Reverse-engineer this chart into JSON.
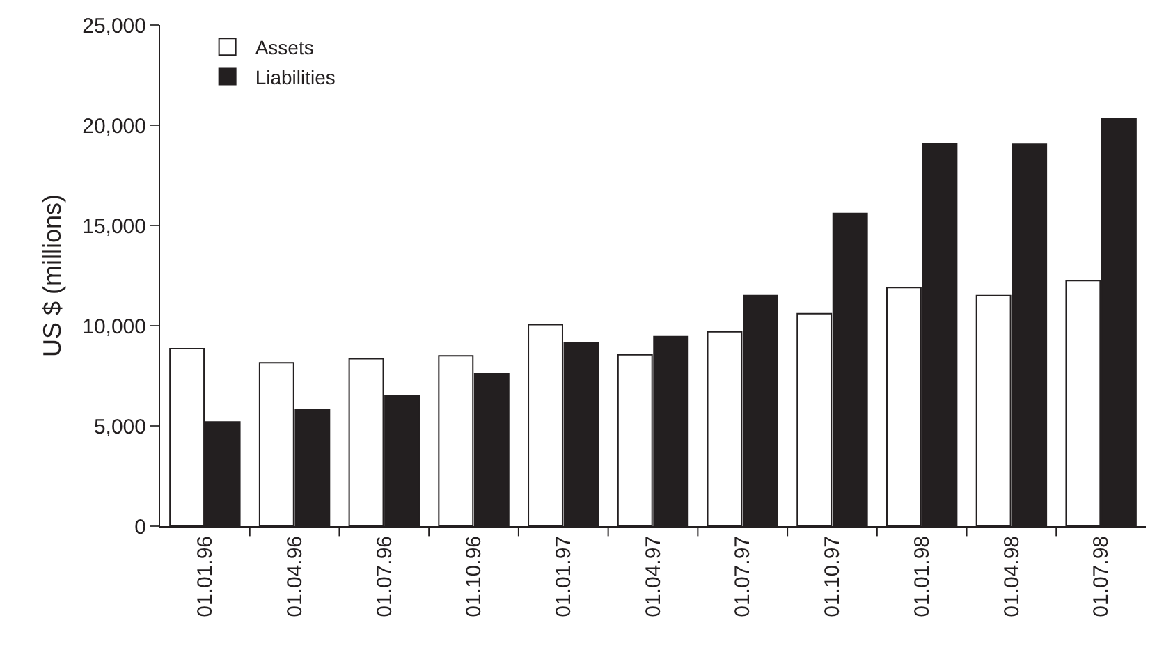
{
  "chart_data": {
    "type": "bar",
    "ylabel": "US $ (millions)",
    "categories": [
      "01.01.96",
      "01.04.96",
      "01.07.96",
      "01.10.96",
      "01.01.97",
      "01.04.97",
      "01.07.97",
      "01.10.97",
      "01.01.98",
      "01.04.98",
      "01.07.98"
    ],
    "series": [
      {
        "name": "Assets",
        "color": "#ffffff",
        "values": [
          8850,
          8150,
          8350,
          8500,
          10050,
          8550,
          9700,
          10600,
          11900,
          11500,
          12250
        ]
      },
      {
        "name": "Liabilities",
        "color": "#231f20",
        "values": [
          5200,
          5800,
          6500,
          7600,
          9150,
          9450,
          11500,
          15600,
          19100,
          19050,
          20350
        ]
      }
    ],
    "ylim": [
      0,
      25000
    ],
    "yticks": [
      {
        "value": 0,
        "label": "0"
      },
      {
        "value": 5000,
        "label": "5,000"
      },
      {
        "value": 10000,
        "label": "10,000"
      },
      {
        "value": 15000,
        "label": "15,000"
      },
      {
        "value": 20000,
        "label": "20,000"
      },
      {
        "value": 25000,
        "label": "25,000"
      }
    ],
    "grid": false,
    "legend": "top left"
  }
}
